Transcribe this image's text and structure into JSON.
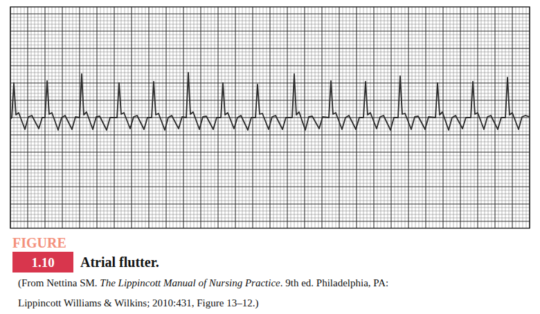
{
  "chart_data": {
    "type": "line",
    "color": "#2a2a2a",
    "grid": true,
    "tick_labels": false,
    "xlim": [
      0,
      750
    ],
    "ylim": [
      -160,
      160
    ],
    "xticks": [
      0,
      25,
      50,
      75,
      100,
      125,
      150,
      175,
      200,
      225,
      250,
      275,
      300,
      325,
      350,
      375,
      400,
      425,
      450,
      475,
      500,
      525,
      550,
      575,
      600,
      625,
      650,
      675,
      700,
      725,
      750
    ],
    "yticks": [
      -150,
      -125,
      -100,
      -75,
      -50,
      -25,
      0,
      25,
      50,
      75,
      100,
      125,
      150
    ],
    "x": [
      0,
      2,
      5,
      8,
      12,
      21,
      26,
      31,
      41,
      46,
      50,
      53,
      56,
      60,
      69,
      74,
      79,
      89,
      94,
      100,
      103,
      106,
      110,
      119,
      124,
      129,
      139,
      144,
      154,
      157,
      160,
      164,
      173,
      178,
      183,
      193,
      198,
      204,
      207,
      210,
      214,
      223,
      228,
      233,
      243,
      248,
      254,
      257,
      260,
      264,
      273,
      278,
      283,
      293,
      298,
      304,
      307,
      310,
      314,
      323,
      328,
      333,
      343,
      348,
      354,
      357,
      360,
      364,
      373,
      378,
      383,
      393,
      398,
      407,
      410,
      413,
      417,
      426,
      431,
      436,
      446,
      451,
      460,
      463,
      466,
      470,
      479,
      484,
      489,
      499,
      504,
      510,
      513,
      516,
      520,
      529,
      534,
      539,
      549,
      554,
      560,
      563,
      566,
      570,
      579,
      584,
      589,
      599,
      604,
      614,
      617,
      620,
      624,
      633,
      638,
      643,
      653,
      658,
      665,
      668,
      671,
      675,
      684,
      689,
      694,
      704,
      709,
      715,
      718,
      721,
      725,
      734,
      739,
      744,
      750
    ],
    "values": [
      -2,
      0,
      50,
      4,
      7,
      -17,
      1,
      3,
      -16,
      0,
      0,
      53,
      5,
      7,
      -18,
      0,
      3,
      -17,
      1,
      0,
      63,
      4,
      8,
      -17,
      1,
      2,
      -18,
      0,
      0,
      50,
      5,
      7,
      -16,
      1,
      3,
      -17,
      0,
      0,
      52,
      4,
      6,
      -18,
      0,
      3,
      -16,
      1,
      0,
      65,
      5,
      8,
      -17,
      1,
      2,
      -17,
      0,
      0,
      50,
      4,
      7,
      -16,
      0,
      3,
      -18,
      0,
      0,
      48,
      5,
      6,
      -17,
      1,
      3,
      -17,
      0,
      0,
      63,
      4,
      8,
      -18,
      1,
      2,
      -16,
      1,
      0,
      53,
      5,
      7,
      -17,
      0,
      3,
      -17,
      0,
      0,
      52,
      4,
      7,
      -16,
      1,
      3,
      -18,
      0,
      0,
      60,
      5,
      6,
      -17,
      1,
      2,
      -17,
      1,
      0,
      50,
      4,
      8,
      -18,
      0,
      3,
      -16,
      0,
      0,
      52,
      5,
      7,
      -17,
      1,
      3,
      -17,
      0,
      0,
      58,
      4,
      7,
      -17,
      1,
      3,
      1
    ]
  },
  "figure": {
    "label": "FIGURE",
    "number": "1.10",
    "title": "Atrial flutter.",
    "source": [
      [
        "(From Nettina SM. ",
        "The Lippincott Manual of Nursing Practice",
        ". 9th ed. Philadelphia, PA:"
      ],
      [
        "Lippincott Williams & Wilkins; 2010:431, Figure 13–12.)"
      ]
    ]
  }
}
